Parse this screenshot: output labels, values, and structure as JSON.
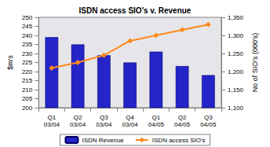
{
  "chart_data": {
    "type": "bar",
    "title": "ISDN access SIO's v. Revenue",
    "y_label": "$m's",
    "y2_label": "No of SIO's (000's)",
    "categories": [
      "Q1\n03/04",
      "Q2\n03/04",
      "Q3\n03/04",
      "Q4\n03/04",
      "Q1\n04/05",
      "Q2\n04/05",
      "Q3\n04/05"
    ],
    "series": [
      {
        "name": "ISDN Revenue",
        "type": "bar",
        "color": "#2424c8",
        "values": [
          239,
          235,
          229,
          225,
          231,
          223,
          218
        ]
      },
      {
        "name": "ISDN access SIO's",
        "type": "line",
        "color": "#ff8a1c",
        "marker": "diamond",
        "axis": "y2",
        "values": [
          1210,
          1225,
          1245,
          1285,
          1300,
          1315,
          1330
        ]
      }
    ],
    "ylim": [
      200,
      250
    ],
    "yticks": [
      200,
      205,
      210,
      215,
      220,
      225,
      230,
      235,
      240,
      245,
      250
    ],
    "y2lim": [
      1100,
      1350
    ],
    "y2ticks": [
      {
        "value": 1100,
        "label": "1,100"
      },
      {
        "value": 1150,
        "label": "1,150"
      },
      {
        "value": 1200,
        "label": "1,200"
      },
      {
        "value": 1250,
        "label": "1,250"
      },
      {
        "value": 1300,
        "label": "1,300"
      },
      {
        "value": 1350,
        "label": "1,350"
      }
    ],
    "grid": false,
    "legend": "bottom"
  }
}
